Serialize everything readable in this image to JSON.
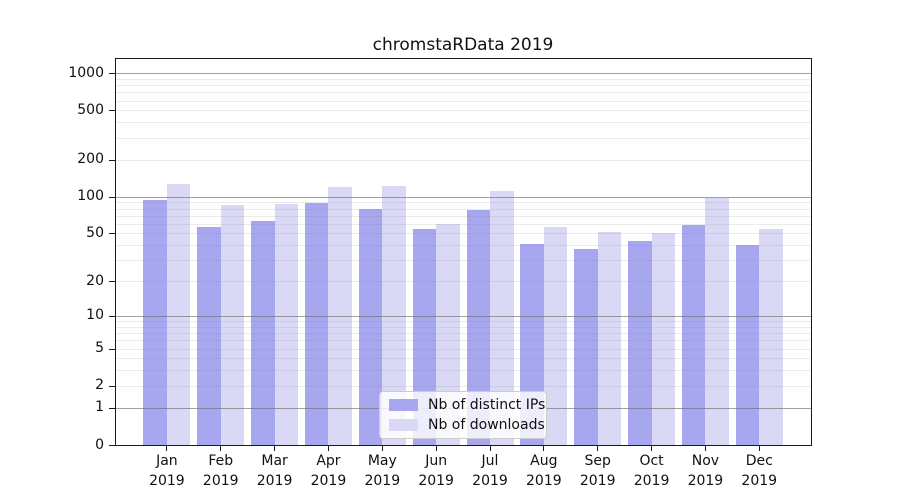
{
  "window": {
    "background": "#ffffff"
  },
  "chart_data": {
    "type": "bar",
    "title": "chromstaRData 2019",
    "categories": [
      "Jan",
      "Feb",
      "Mar",
      "Apr",
      "May",
      "Jun",
      "Jul",
      "Aug",
      "Sep",
      "Oct",
      "Nov",
      "Dec"
    ],
    "year_label": "2019",
    "series": [
      {
        "name": "Nb of distinct IPs",
        "color": "#a7a7ef",
        "values": [
          94,
          57,
          63,
          89,
          80,
          54,
          78,
          41,
          37,
          43,
          59,
          40
        ]
      },
      {
        "name": "Nb of downloads",
        "color": "#d9d9f6",
        "values": [
          127,
          85,
          87,
          119,
          122,
          60,
          112,
          57,
          51,
          50,
          97,
          54
        ]
      }
    ],
    "y_axis": {
      "scale": "log10(1+x)",
      "tick_values": [
        0,
        1,
        2,
        5,
        10,
        20,
        50,
        100,
        200,
        500,
        1000
      ],
      "ylim": [
        0,
        1330
      ],
      "major_grid_at": [
        1,
        10,
        100,
        1000
      ],
      "minor_grid": true
    },
    "x_axis": {
      "tick_label_lines": 2
    },
    "legend": {
      "position": "inside-bottom-center",
      "entries": [
        "Nb of distinct IPs",
        "Nb of downloads"
      ]
    },
    "grid_on": true,
    "plot_background": "#ffffff"
  }
}
